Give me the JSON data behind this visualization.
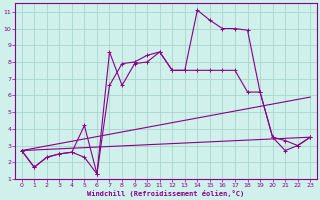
{
  "background_color": "#cff0eb",
  "grid_color": "#aad4cd",
  "line_color": "#880088",
  "xlabel": "Windchill (Refroidissement éolien,°C)",
  "xlim": [
    -0.5,
    23.5
  ],
  "ylim": [
    1,
    11.5
  ],
  "xticks": [
    0,
    1,
    2,
    3,
    4,
    5,
    6,
    7,
    8,
    9,
    10,
    11,
    12,
    13,
    14,
    15,
    16,
    17,
    18,
    19,
    20,
    21,
    22,
    23
  ],
  "yticks": [
    1,
    2,
    3,
    4,
    5,
    6,
    7,
    8,
    9,
    10,
    11
  ],
  "series1_x": [
    0,
    1,
    2,
    3,
    4,
    5,
    6,
    7,
    8,
    9,
    10,
    11,
    12,
    13,
    14,
    15,
    16,
    17,
    18,
    19,
    20,
    21,
    22,
    23
  ],
  "series1_y": [
    2.7,
    1.7,
    2.3,
    2.5,
    2.6,
    4.2,
    1.3,
    8.6,
    6.6,
    7.9,
    8.0,
    8.6,
    7.5,
    7.5,
    11.1,
    10.5,
    10.0,
    10.0,
    9.9,
    6.2,
    3.5,
    2.7,
    3.0,
    3.5
  ],
  "series2_x": [
    0,
    1,
    2,
    3,
    4,
    5,
    6,
    7,
    8,
    9,
    10,
    11,
    12,
    13,
    14,
    15,
    16,
    17,
    18,
    19,
    20,
    21,
    22,
    23
  ],
  "series2_y": [
    2.7,
    1.7,
    2.3,
    2.5,
    2.6,
    2.3,
    1.3,
    6.6,
    7.9,
    8.0,
    8.4,
    8.6,
    7.5,
    7.5,
    7.5,
    7.5,
    7.5,
    7.5,
    6.2,
    6.2,
    3.5,
    3.3,
    3.0,
    3.5
  ],
  "series3_x": [
    0,
    23
  ],
  "series3_y": [
    2.7,
    5.9
  ],
  "series4_x": [
    0,
    23
  ],
  "series4_y": [
    2.7,
    3.5
  ]
}
